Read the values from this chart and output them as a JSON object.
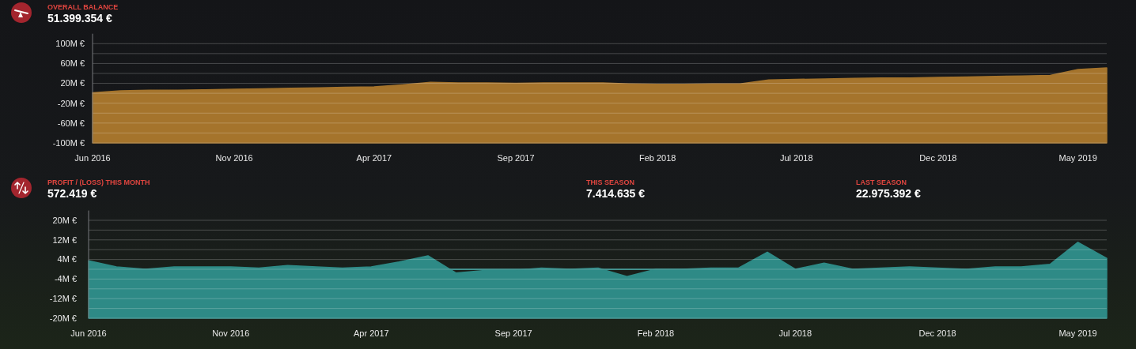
{
  "chart_data": [
    {
      "type": "area",
      "title": "OVERALL BALANCE",
      "subtitle": "51.399.354 €",
      "x": [
        "2016-06",
        "2016-07",
        "2016-08",
        "2016-09",
        "2016-10",
        "2016-11",
        "2016-12",
        "2017-01",
        "2017-02",
        "2017-03",
        "2017-04",
        "2017-05",
        "2017-06",
        "2017-07",
        "2017-08",
        "2017-09",
        "2017-10",
        "2017-11",
        "2017-12",
        "2018-01",
        "2018-02",
        "2018-03",
        "2018-04",
        "2018-05",
        "2018-06",
        "2018-07",
        "2018-08",
        "2018-09",
        "2018-10",
        "2018-11",
        "2018-12",
        "2019-01",
        "2019-02",
        "2019-03",
        "2019-04",
        "2019-05",
        "2019-06"
      ],
      "values": [
        1,
        5,
        6,
        6,
        7,
        8,
        9,
        10,
        11,
        12,
        13,
        17,
        22,
        21,
        21,
        20,
        21,
        21,
        21,
        19,
        18,
        18,
        19,
        19,
        27,
        28,
        29,
        30,
        31,
        31,
        32,
        33,
        34,
        35,
        36,
        48,
        51
      ],
      "color": "#a5742c",
      "xlim": [
        "2016-06",
        "2019-06"
      ],
      "xticks": [
        {
          "value": "2016-06",
          "label": "Jun 2016"
        },
        {
          "value": "2016-11",
          "label": "Nov 2016"
        },
        {
          "value": "2017-04",
          "label": "Apr 2017"
        },
        {
          "value": "2017-09",
          "label": "Sep 2017"
        },
        {
          "value": "2018-02",
          "label": "Feb 2018"
        },
        {
          "value": "2018-07",
          "label": "Jul 2018"
        },
        {
          "value": "2018-12",
          "label": "Dec 2018"
        },
        {
          "value": "2019-05",
          "label": "May 2019"
        }
      ],
      "ylim": [
        -100,
        120
      ],
      "yticks": [
        {
          "value": -100,
          "label": "-100M €"
        },
        {
          "value": -80,
          "label": null
        },
        {
          "value": -60,
          "label": "-60M €"
        },
        {
          "value": -40,
          "label": null
        },
        {
          "value": -20,
          "label": "-20M €"
        },
        {
          "value": 0,
          "label": null
        },
        {
          "value": 20,
          "label": "20M €"
        },
        {
          "value": 40,
          "label": null
        },
        {
          "value": 60,
          "label": "60M €"
        },
        {
          "value": 80,
          "label": null
        },
        {
          "value": 100,
          "label": "100M €"
        }
      ],
      "grid": "y"
    },
    {
      "type": "area",
      "title": "PROFIT / (LOSS) THIS MONTH",
      "subtitle": "572.419 €",
      "annotations": [
        "THIS SEASON",
        "7.414.635 €",
        "LAST SEASON",
        "22.975.392 €"
      ],
      "x": [
        "2016-06",
        "2016-07",
        "2016-08",
        "2016-09",
        "2016-10",
        "2016-11",
        "2016-12",
        "2017-01",
        "2017-02",
        "2017-03",
        "2017-04",
        "2017-05",
        "2017-06",
        "2017-07",
        "2017-08",
        "2017-09",
        "2017-10",
        "2017-11",
        "2017-12",
        "2018-01",
        "2018-02",
        "2018-03",
        "2018-04",
        "2018-05",
        "2018-06",
        "2018-07",
        "2018-08",
        "2018-09",
        "2018-10",
        "2018-11",
        "2018-12",
        "2019-01",
        "2019-02",
        "2019-03",
        "2019-04",
        "2019-05",
        "2019-06"
      ],
      "values": [
        3.5,
        1,
        0,
        1,
        1,
        1,
        0.5,
        1.5,
        1,
        0.5,
        1,
        3,
        5.5,
        -1.5,
        -0.5,
        -0.5,
        0.5,
        0,
        0.5,
        -3,
        0,
        0,
        0.5,
        0.5,
        7,
        0,
        2.5,
        0,
        0.5,
        1,
        0.5,
        0,
        1,
        1,
        2,
        11,
        4.5
      ],
      "color": "#2e8a86",
      "xlim": [
        "2016-06",
        "2019-06"
      ],
      "xticks": [
        {
          "value": "2016-06",
          "label": "Jun 2016"
        },
        {
          "value": "2016-11",
          "label": "Nov 2016"
        },
        {
          "value": "2017-04",
          "label": "Apr 2017"
        },
        {
          "value": "2017-09",
          "label": "Sep 2017"
        },
        {
          "value": "2018-02",
          "label": "Feb 2018"
        },
        {
          "value": "2018-07",
          "label": "Jul 2018"
        },
        {
          "value": "2018-12",
          "label": "Dec 2018"
        },
        {
          "value": "2019-05",
          "label": "May 2019"
        }
      ],
      "ylim": [
        -20,
        24
      ],
      "yticks": [
        {
          "value": -20,
          "label": "-20M €"
        },
        {
          "value": -16,
          "label": null
        },
        {
          "value": -12,
          "label": "-12M €"
        },
        {
          "value": -8,
          "label": null
        },
        {
          "value": -4,
          "label": "-4M €"
        },
        {
          "value": 0,
          "label": null
        },
        {
          "value": 4,
          "label": "4M €"
        },
        {
          "value": 8,
          "label": null
        },
        {
          "value": 12,
          "label": "12M €"
        },
        {
          "value": 16,
          "label": null
        },
        {
          "value": 20,
          "label": "20M €"
        }
      ],
      "grid": "y"
    }
  ]
}
